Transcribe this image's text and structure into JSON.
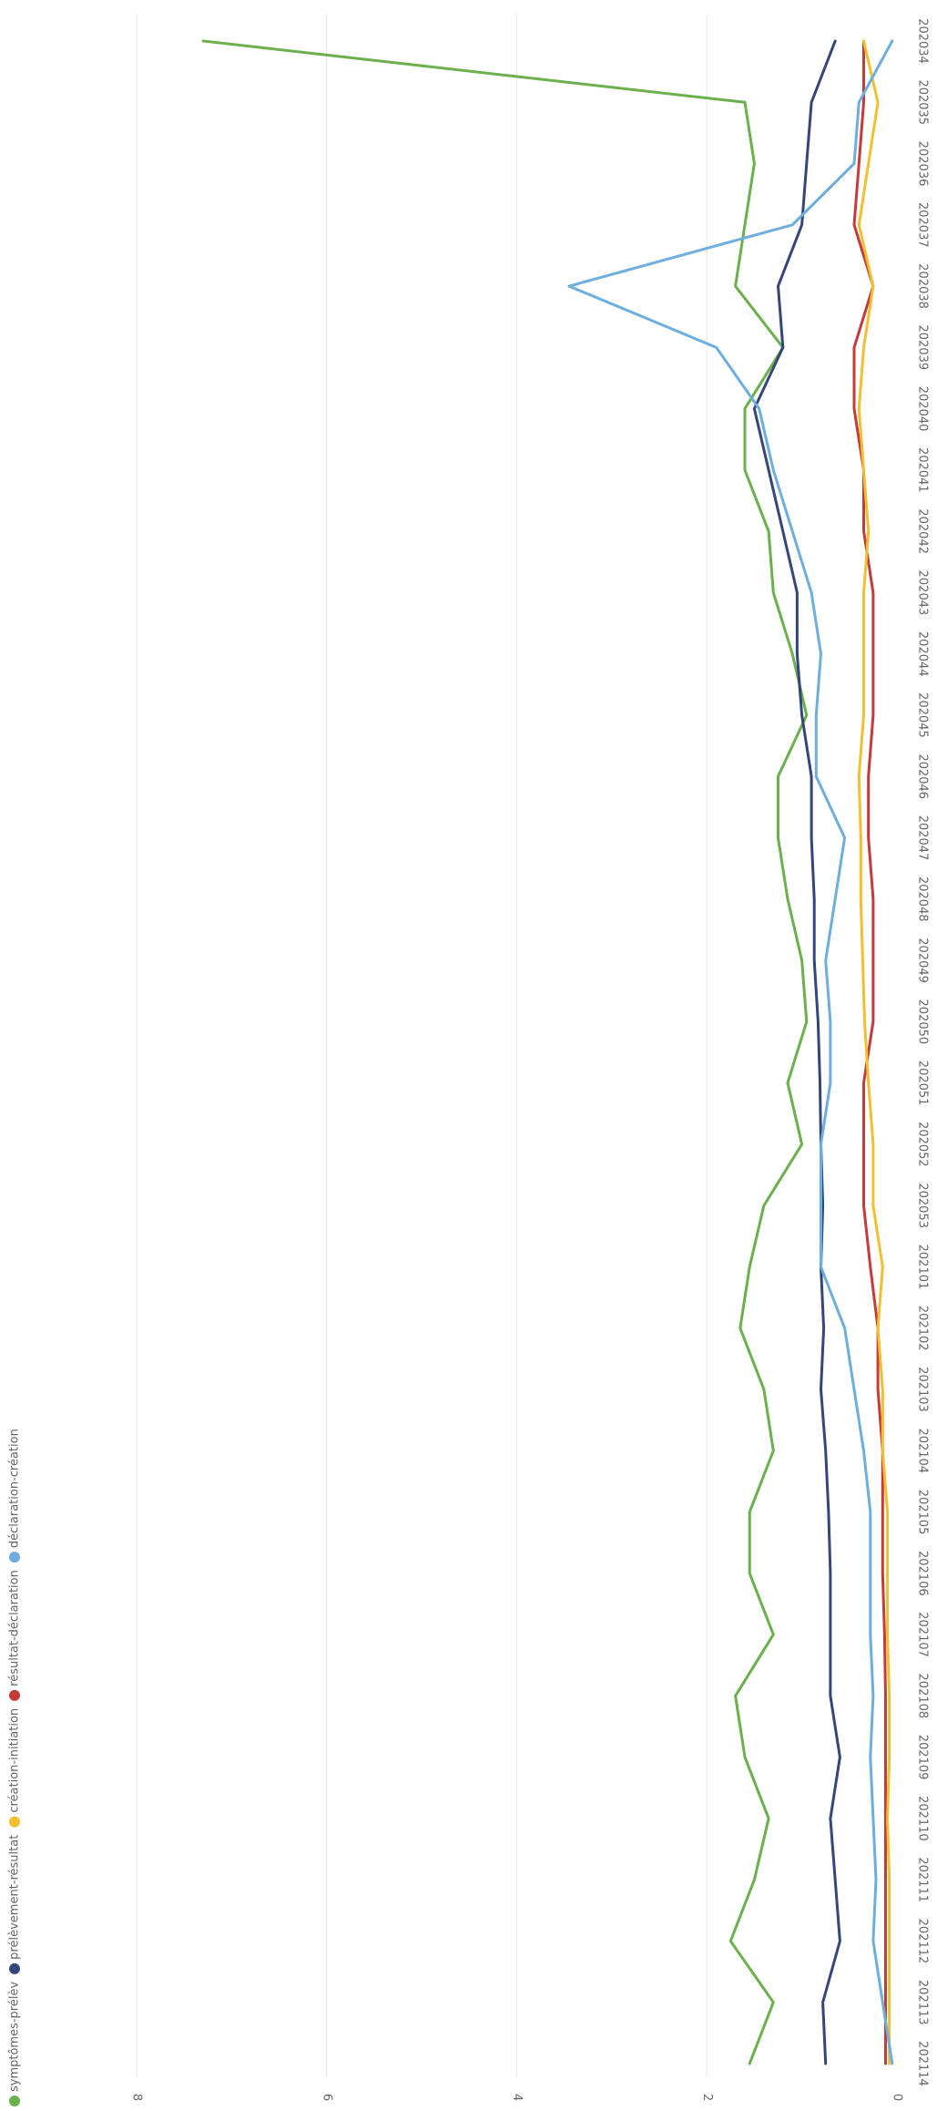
{
  "chart_data": {
    "type": "line",
    "orientation": "rotated-90-clockwise",
    "x": [
      "202034",
      "202035",
      "202036",
      "202037",
      "202038",
      "202039",
      "202040",
      "202041",
      "202042",
      "202043",
      "202044",
      "202045",
      "202046",
      "202047",
      "202048",
      "202049",
      "202050",
      "202051",
      "202052",
      "202053",
      "202101",
      "202102",
      "202103",
      "202104",
      "202105",
      "202106",
      "202107",
      "202108",
      "202109",
      "202110",
      "202111",
      "202112",
      "202113",
      "202114"
    ],
    "ylim": [
      0,
      8
    ],
    "y_ticks": [
      0,
      2,
      4,
      6,
      8
    ],
    "grid": true,
    "legend_position": "top",
    "series": [
      {
        "name": "symptômes-prélèv",
        "color": "#6ab04c",
        "values": [
          7.3,
          1.6,
          1.5,
          1.6,
          1.7,
          1.2,
          1.6,
          1.6,
          1.35,
          1.3,
          1.1,
          0.95,
          1.25,
          1.25,
          1.15,
          1.0,
          0.95,
          1.15,
          1.0,
          1.4,
          1.55,
          1.65,
          1.4,
          1.3,
          1.55,
          1.55,
          1.3,
          1.7,
          1.6,
          1.35,
          1.5,
          1.75,
          1.3,
          1.55
        ]
      },
      {
        "name": "prélèvement-résultat",
        "color": "#34467a",
        "values": [
          0.65,
          0.9,
          0.95,
          1.0,
          1.25,
          1.2,
          1.5,
          1.35,
          1.2,
          1.05,
          1.05,
          1.0,
          0.9,
          0.9,
          0.87,
          0.87,
          0.83,
          0.81,
          0.8,
          0.78,
          0.8,
          0.77,
          0.8,
          0.75,
          0.72,
          0.7,
          0.7,
          0.7,
          0.6,
          0.7,
          0.65,
          0.6,
          0.78,
          0.75
        ]
      },
      {
        "name": "résultat-déclaration",
        "color": "#c53a3a",
        "values": [
          0.35,
          0.35,
          0.4,
          0.45,
          0.25,
          0.45,
          0.45,
          0.35,
          0.35,
          0.25,
          0.25,
          0.25,
          0.3,
          0.3,
          0.25,
          0.25,
          0.25,
          0.35,
          0.35,
          0.35,
          0.28,
          0.2,
          0.2,
          0.15,
          0.15,
          0.15,
          0.13,
          0.12,
          0.12,
          0.12,
          0.12,
          0.12,
          0.12,
          0.12
        ]
      },
      {
        "name": "création-initiation",
        "color": "#f0c030",
        "values": [
          0.35,
          0.2,
          0.3,
          0.4,
          0.25,
          0.35,
          0.4,
          0.35,
          0.3,
          0.35,
          0.35,
          0.35,
          0.4,
          0.38,
          0.38,
          0.36,
          0.34,
          0.3,
          0.25,
          0.25,
          0.15,
          0.2,
          0.15,
          0.15,
          0.1,
          0.1,
          0.1,
          0.08,
          0.08,
          0.1,
          0.08,
          0.08,
          0.08,
          0.08
        ]
      },
      {
        "name": "déclaration-création",
        "color": "#6daedf",
        "values": [
          0.05,
          0.4,
          0.45,
          1.1,
          3.45,
          1.9,
          1.45,
          1.3,
          1.1,
          0.9,
          0.8,
          0.85,
          0.85,
          0.55,
          0.65,
          0.75,
          0.7,
          0.7,
          0.8,
          0.8,
          0.8,
          0.55,
          0.45,
          0.35,
          0.28,
          0.28,
          0.28,
          0.25,
          0.28,
          0.25,
          0.22,
          0.25,
          0.15,
          0.05
        ]
      }
    ]
  }
}
